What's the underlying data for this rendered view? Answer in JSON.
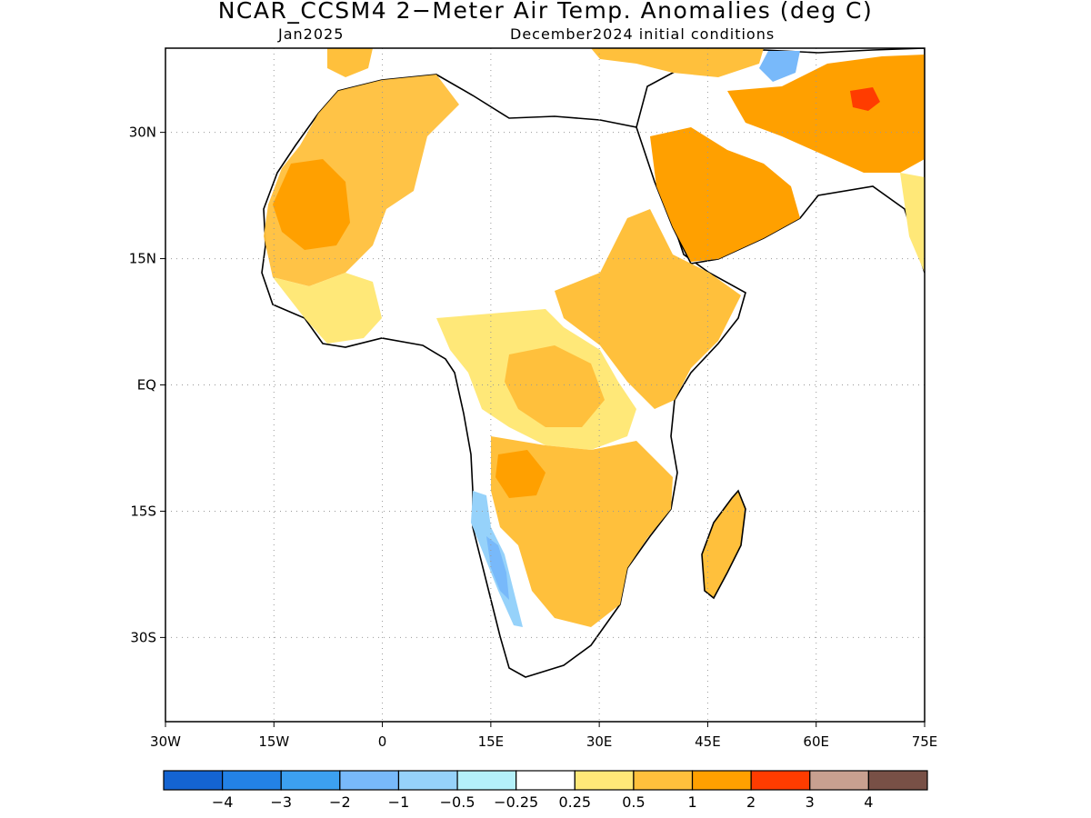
{
  "title": "NCAR_CCSM4 2−Meter Air Temp. Anomalies (deg C)",
  "subtitle_left": "Jan2025",
  "subtitle_right": "December2024 initial conditions",
  "lon_ticks": [
    {
      "value": -30,
      "label": "30W"
    },
    {
      "value": -15,
      "label": "15W"
    },
    {
      "value": 0,
      "label": "0"
    },
    {
      "value": 15,
      "label": "15E"
    },
    {
      "value": 30,
      "label": "30E"
    },
    {
      "value": 45,
      "label": "45E"
    },
    {
      "value": 60,
      "label": "60E"
    },
    {
      "value": 75,
      "label": "75E"
    }
  ],
  "lat_ticks": [
    {
      "value": 30,
      "label": "30N"
    },
    {
      "value": 15,
      "label": "15N"
    },
    {
      "value": 0,
      "label": "EQ"
    },
    {
      "value": -15,
      "label": "15S"
    },
    {
      "value": -30,
      "label": "30S"
    }
  ],
  "extent": {
    "lon_min": -30,
    "lon_max": 75,
    "lat_min": -40,
    "lat_max": 40
  },
  "legend": {
    "colors": [
      "#1464d2",
      "#2382e6",
      "#3ca0f0",
      "#78b9fa",
      "#96d2fa",
      "#b4f0fa",
      "#ffffff",
      "#ffe878",
      "#ffc03c",
      "#ffa000",
      "#ff3c00",
      "#c8a090",
      "#785046"
    ],
    "labels": [
      "−4",
      "−3",
      "−2",
      "−1",
      "−0.5",
      "−0.25",
      "0.25",
      "0.5",
      "1",
      "2",
      "3",
      "4"
    ]
  }
}
